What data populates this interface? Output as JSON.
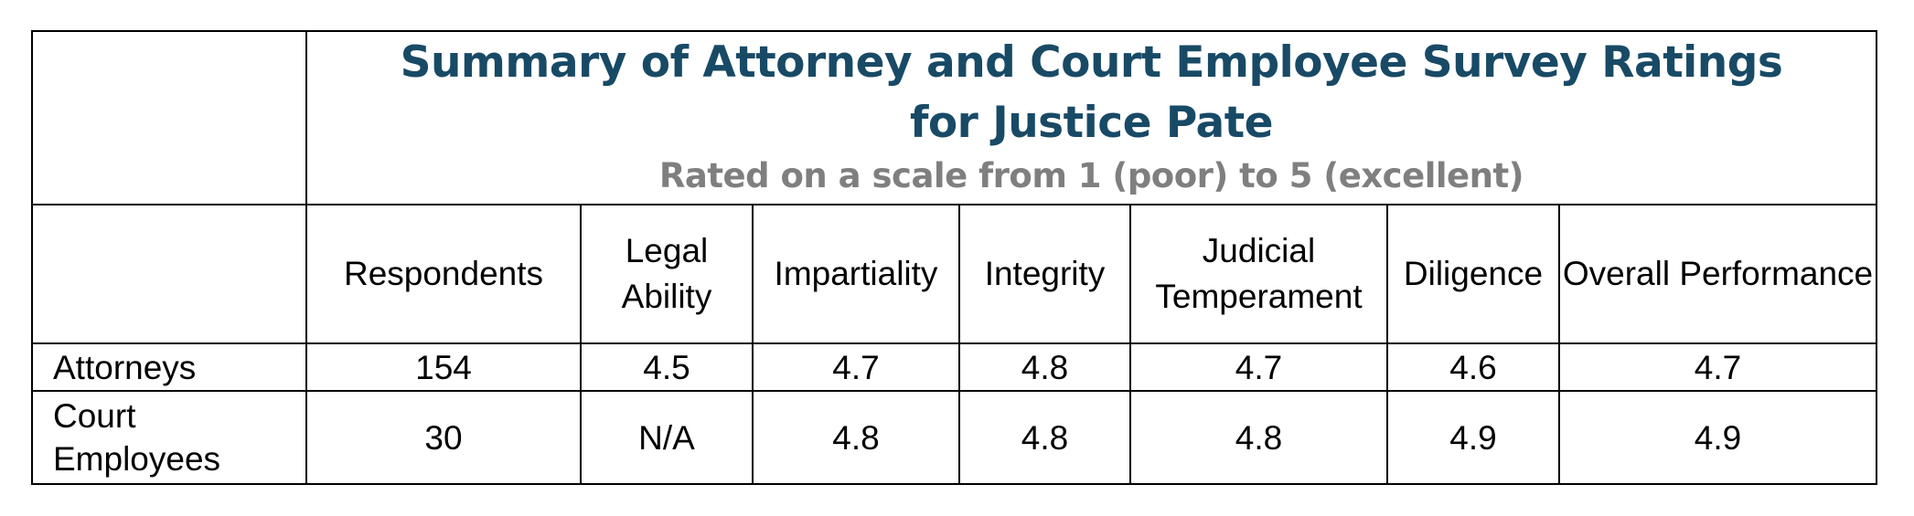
{
  "title": "Summary of Attorney and Court Employee Survey Ratings for Justice Pate",
  "subtitle": "Rated on a scale from 1 (poor) to 5 (excellent)",
  "columns": [
    "Respondents",
    "Legal Ability",
    "Impartiality",
    "Integrity",
    "Judicial Temperament",
    "Diligence",
    "Overall Performance"
  ],
  "rows": [
    {
      "label": "Attorneys",
      "values": [
        "154",
        "4.5",
        "4.7",
        "4.8",
        "4.7",
        "4.6",
        "4.7"
      ]
    },
    {
      "label": "Court Employees",
      "values": [
        "30",
        "N/A",
        "4.8",
        "4.8",
        "4.8",
        "4.9",
        "4.9"
      ]
    }
  ]
}
